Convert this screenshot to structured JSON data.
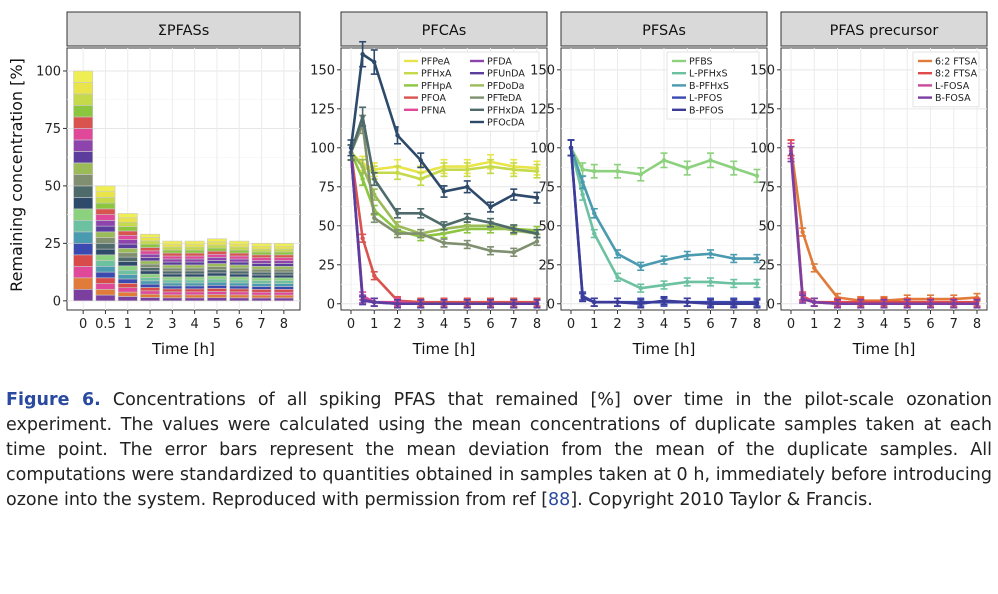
{
  "ylabel": "Remaining concentration [%]",
  "colors": {
    "PFPeA": "#e8e44a",
    "PFHxA": "#c5d94a",
    "PFHpA": "#8cc63f",
    "PFOA": "#d9534f",
    "PFNA": "#e0489a",
    "PFDA": "#8e44ad",
    "PFUnDA": "#5b3d9e",
    "PFDoDa": "#9bbb59",
    "PFTeDA": "#7f8f70",
    "PFHxDA": "#4e6a6a",
    "PFOcDA": "#2e4a6b",
    "PFBS": "#8cd17d",
    "L-PFHxS": "#6cc2a0",
    "B-PFHxS": "#4a9ab0",
    "L-PFOS": "#3a4ab0",
    "B-PFOS": "#3b3b9a",
    "6:2 FTSA": "#e07b39",
    "8:2 FTSA": "#e04a4a",
    "L-FOSA": "#c94a9a",
    "B-FOSA": "#7a3fa0"
  },
  "chart_data": [
    {
      "type": "bar",
      "title": "ΣPFASs",
      "xlabel": "Time [h]",
      "ylabel": "Remaining concentration [%]",
      "categories": [
        "0",
        "0.5",
        "1",
        "2",
        "3",
        "4",
        "5",
        "6",
        "7",
        "8"
      ],
      "values": [
        100,
        50,
        38,
        29,
        26,
        26,
        27,
        26,
        25,
        25
      ],
      "stack_palette": [
        "#7b3fa0",
        "#e07b39",
        "#e0489a",
        "#d94a4a",
        "#3a4ab0",
        "#4a9ab0",
        "#6cc2a0",
        "#8cd17d",
        "#2e4a6b",
        "#4e6a6a",
        "#7f8f70",
        "#9bbb59",
        "#5b3d9e",
        "#8e44ad",
        "#e0489a",
        "#d9534f",
        "#8cc63f",
        "#c5d94a",
        "#e8e44a",
        "#f0ee55"
      ],
      "yticks": [
        0,
        25,
        50,
        75,
        100
      ],
      "ylim": [
        -4,
        110
      ]
    },
    {
      "type": "line",
      "title": "PFCAs",
      "xlabel": "Time [h]",
      "x": [
        0,
        0.5,
        1,
        2,
        3,
        4,
        5,
        6,
        7,
        8
      ],
      "xticks": [
        0,
        1,
        2,
        3,
        4,
        5,
        6,
        7,
        8
      ],
      "yticks": [
        0,
        25,
        50,
        75,
        100,
        125,
        150
      ],
      "ylim": [
        -4,
        164
      ],
      "series": [
        {
          "name": "PFPeA",
          "values": [
            97,
            90,
            86,
            88,
            84,
            88,
            88,
            91,
            88,
            87
          ]
        },
        {
          "name": "PFHxA",
          "values": [
            97,
            88,
            84,
            84,
            80,
            86,
            86,
            88,
            86,
            85
          ]
        },
        {
          "name": "PFHpA",
          "values": [
            97,
            80,
            60,
            47,
            43,
            45,
            48,
            48,
            48,
            47
          ]
        },
        {
          "name": "PFOA",
          "values": [
            97,
            42,
            18,
            2,
            1,
            1,
            1,
            1,
            1,
            1
          ]
        },
        {
          "name": "PFNA",
          "values": [
            97,
            5,
            1,
            1,
            0,
            0,
            0,
            0,
            0,
            0
          ]
        },
        {
          "name": "PFDA",
          "values": [
            97,
            3,
            1,
            0,
            0,
            0,
            0,
            0,
            0,
            0
          ]
        },
        {
          "name": "PFUnDA",
          "values": [
            97,
            2,
            1,
            0,
            0,
            0,
            0,
            0,
            0,
            0
          ]
        },
        {
          "name": "PFDoDa",
          "values": [
            97,
            88,
            70,
            50,
            45,
            48,
            50,
            50,
            47,
            45
          ]
        },
        {
          "name": "PFTeDA",
          "values": [
            97,
            115,
            55,
            45,
            45,
            39,
            38,
            34,
            33,
            40
          ]
        },
        {
          "name": "PFHxDA",
          "values": [
            97,
            120,
            80,
            58,
            58,
            50,
            55,
            52,
            48,
            45
          ]
        },
        {
          "name": "PFOcDA",
          "values": [
            100,
            160,
            155,
            108,
            92,
            72,
            75,
            62,
            70,
            68
          ]
        }
      ]
    },
    {
      "type": "line",
      "title": "PFSAs",
      "xlabel": "Time [h]",
      "x": [
        0,
        0.5,
        1,
        2,
        3,
        4,
        5,
        6,
        7,
        8
      ],
      "xticks": [
        0,
        1,
        2,
        3,
        4,
        5,
        6,
        7,
        8
      ],
      "yticks": [
        0,
        25,
        50,
        75,
        100,
        125,
        150
      ],
      "ylim": [
        -4,
        164
      ],
      "series": [
        {
          "name": "PFBS",
          "values": [
            100,
            86,
            85,
            85,
            83,
            92,
            87,
            92,
            87,
            82
          ]
        },
        {
          "name": "L-PFHxS",
          "values": [
            100,
            70,
            45,
            17,
            10,
            12,
            14,
            14,
            13,
            13
          ]
        },
        {
          "name": "B-PFHxS",
          "values": [
            100,
            78,
            58,
            32,
            24,
            28,
            31,
            32,
            29,
            29
          ]
        },
        {
          "name": "L-PFOS",
          "values": [
            100,
            5,
            1,
            1,
            1,
            1,
            1,
            1,
            1,
            1
          ]
        },
        {
          "name": "B-PFOS",
          "values": [
            100,
            4,
            1,
            1,
            0,
            2,
            1,
            0,
            0,
            0
          ]
        }
      ]
    },
    {
      "type": "line",
      "title": "PFAS precursor",
      "xlabel": "Time [h]",
      "x": [
        0,
        0.5,
        1,
        2,
        3,
        4,
        5,
        6,
        7,
        8
      ],
      "xticks": [
        0,
        1,
        2,
        3,
        4,
        5,
        6,
        7,
        8
      ],
      "yticks": [
        0,
        25,
        50,
        75,
        100,
        125,
        150
      ],
      "ylim": [
        -4,
        164
      ],
      "series": [
        {
          "name": "6:2 FTSA",
          "values": [
            100,
            46,
            23,
            4,
            2,
            2,
            3,
            3,
            3,
            4
          ]
        },
        {
          "name": "8:2 FTSA",
          "values": [
            100,
            5,
            1,
            1,
            1,
            1,
            1,
            1,
            1,
            1
          ]
        },
        {
          "name": "L-FOSA",
          "values": [
            98,
            4,
            1,
            0,
            0,
            0,
            0,
            0,
            0,
            0
          ]
        },
        {
          "name": "B-FOSA",
          "values": [
            96,
            3,
            1,
            0,
            0,
            0,
            0,
            0,
            0,
            0
          ]
        }
      ]
    }
  ],
  "caption": {
    "label": "Figure 6.",
    "text_before_ref": " Concentrations of all spiking PFAS that remained [%] over time in the pilot-scale ozonation experiment. The values were calculated using the mean concentrations of duplicate samples taken at each time point. The error bars represent the mean deviation from the mean of the duplicate samples. All computations were standardized to quantities obtained in samples taken at 0 h, immediately before introducing ozone into the system. Reproduced with permission from ref [",
    "ref": "88",
    "text_after_ref": "]. Copyright 2010 Taylor & Francis."
  }
}
